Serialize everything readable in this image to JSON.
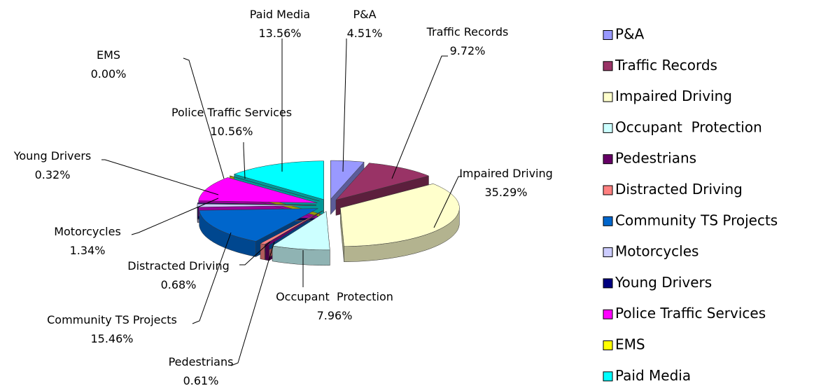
{
  "chart_data": {
    "type": "pie3d",
    "categories": [
      "P&A",
      "Traffic Records",
      "Impaired Driving",
      "Occupant  Protection",
      "Pedestrians",
      "Distracted Driving",
      "Community TS Projects",
      "Motorcycles",
      "Young Drivers",
      "Police Traffic Services",
      "EMS",
      "Paid Media"
    ],
    "values": [
      4.51,
      9.72,
      35.29,
      7.96,
      0.61,
      0.68,
      15.46,
      1.34,
      0.32,
      10.56,
      0,
      13.56
    ],
    "value_labels": [
      "4.51%",
      "9.72%",
      "35.29%",
      "7.96%",
      "0.61%",
      "0.68%",
      "15.46%",
      "1.34%",
      "0.32%",
      "10.56%",
      "0.00%",
      "13.56%"
    ],
    "colors": [
      "#9999ff",
      "#993366",
      "#ffffcc",
      "#ccffff",
      "#660066",
      "#ff8080",
      "#0066cc",
      "#ccccff",
      "#000080",
      "#ff00ff",
      "#ffff00",
      "#00ffff"
    ],
    "legend": "right"
  }
}
